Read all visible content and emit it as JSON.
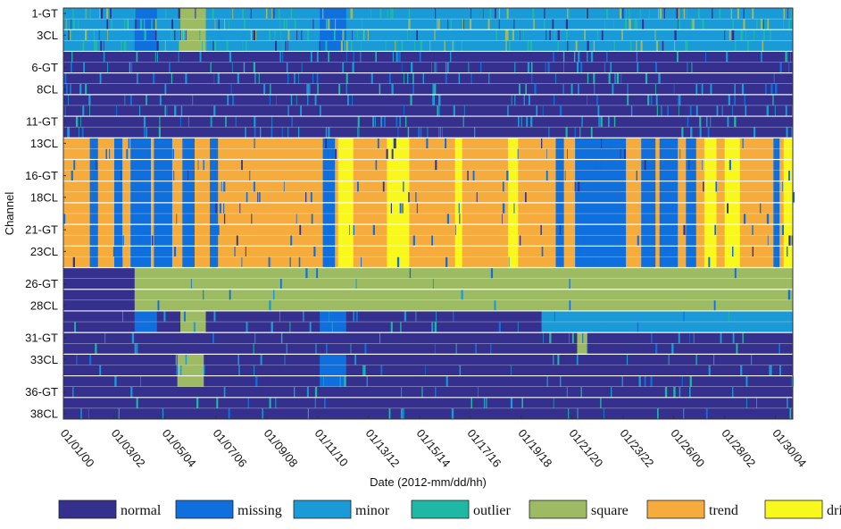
{
  "chart_data": {
    "type": "heatmap",
    "title": "",
    "xlabel": "Date (2012-mm/dd/hh)",
    "ylabel": "Channel",
    "x_tick_labels": [
      "01/01/00",
      "01/03/02",
      "01/05/04",
      "01/07/06",
      "01/09/08",
      "01/11/10",
      "01/13/12",
      "01/15/14",
      "01/17/16",
      "01/19/18",
      "01/21/20",
      "01/23/22",
      "01/26/00",
      "01/28/02",
      "01/30/04"
    ],
    "x_range_hours": [
      0,
      717
    ],
    "x_tick_hours": [
      0,
      50,
      100,
      150,
      200,
      250,
      300,
      350,
      400,
      450,
      500,
      550,
      600,
      650,
      700
    ],
    "channel_count": 38,
    "y_tick_labels": [
      "1-GT",
      "3CL",
      "6-GT",
      "8CL",
      "11-GT",
      "13CL",
      "16-GT",
      "18CL",
      "21-GT",
      "23CL",
      "26-GT",
      "28CL",
      "31-GT",
      "33CL",
      "36-GT",
      "38CL"
    ],
    "y_tick_channels": [
      1,
      3,
      6,
      8,
      11,
      13,
      16,
      18,
      21,
      23,
      26,
      28,
      31,
      33,
      36,
      38
    ],
    "categories": [
      {
        "name": "normal",
        "color": "#35308e"
      },
      {
        "name": "missing",
        "color": "#0f6fdc"
      },
      {
        "name": "minor",
        "color": "#1a9ad6"
      },
      {
        "name": "outlier",
        "color": "#1fb8a4"
      },
      {
        "name": "square",
        "color": "#9dbb62"
      },
      {
        "name": "trend",
        "color": "#f6ac3c"
      },
      {
        "name": "drift",
        "color": "#f8f81c"
      }
    ],
    "channel_blocks": [
      {
        "channels": [
          1,
          2,
          3,
          4
        ],
        "base": "minor",
        "segments": [
          {
            "x0": 70,
            "x1": 92,
            "cat": "missing"
          },
          {
            "x0": 115,
            "x1": 140,
            "cat": "square"
          },
          {
            "x0": 252,
            "x1": 278,
            "cat": "missing"
          }
        ]
      },
      {
        "channels": [
          5,
          6,
          7,
          8,
          9,
          10,
          11,
          12
        ],
        "base": "normal",
        "segments": []
      },
      {
        "channels": [
          13,
          14,
          15,
          16,
          17,
          18,
          19,
          20,
          21,
          22,
          23,
          24
        ],
        "base": "trend",
        "segments": [
          {
            "x0": 26,
            "x1": 34,
            "cat": "missing"
          },
          {
            "x0": 50,
            "x1": 58,
            "cat": "missing"
          },
          {
            "x0": 66,
            "x1": 86,
            "cat": "missing"
          },
          {
            "x0": 89,
            "x1": 107,
            "cat": "missing"
          },
          {
            "x0": 117,
            "x1": 129,
            "cat": "missing"
          },
          {
            "x0": 144,
            "x1": 152,
            "cat": "missing"
          },
          {
            "x0": 255,
            "x1": 267,
            "cat": "missing"
          },
          {
            "x0": 270,
            "x1": 285,
            "cat": "drift"
          },
          {
            "x0": 318,
            "x1": 340,
            "cat": "drift"
          },
          {
            "x0": 385,
            "x1": 392,
            "cat": "drift"
          },
          {
            "x0": 437,
            "x1": 447,
            "cat": "drift"
          },
          {
            "x0": 484,
            "x1": 492,
            "cat": "missing"
          },
          {
            "x0": 503,
            "x1": 553,
            "cat": "missing"
          },
          {
            "x0": 568,
            "x1": 582,
            "cat": "missing"
          },
          {
            "x0": 586,
            "x1": 604,
            "cat": "missing"
          },
          {
            "x0": 612,
            "x1": 622,
            "cat": "missing"
          },
          {
            "x0": 630,
            "x1": 642,
            "cat": "drift"
          },
          {
            "x0": 650,
            "x1": 665,
            "cat": "drift"
          },
          {
            "x0": 698,
            "x1": 704,
            "cat": "missing"
          },
          {
            "x0": 708,
            "x1": 717,
            "cat": "drift"
          }
        ]
      },
      {
        "channels": [
          25,
          26,
          27,
          28
        ],
        "base": "square",
        "segments": [
          {
            "x0": 0,
            "x1": 70,
            "cat": "normal"
          }
        ]
      },
      {
        "channels": [
          29,
          30
        ],
        "base": "normal",
        "segments": [
          {
            "x0": 70,
            "x1": 92,
            "cat": "missing"
          },
          {
            "x0": 115,
            "x1": 140,
            "cat": "square"
          },
          {
            "x0": 252,
            "x1": 278,
            "cat": "missing"
          },
          {
            "x0": 470,
            "x1": 717,
            "cat": "minor"
          }
        ]
      },
      {
        "channels": [
          31,
          32
        ],
        "base": "normal",
        "segments": [
          {
            "x0": 505,
            "x1": 515,
            "cat": "square"
          }
        ]
      },
      {
        "channels": [
          33,
          34,
          35
        ],
        "base": "normal",
        "segments": [
          {
            "x0": 112,
            "x1": 138,
            "cat": "square"
          },
          {
            "x0": 252,
            "x1": 278,
            "cat": "missing"
          }
        ]
      },
      {
        "channels": [
          36,
          37,
          38
        ],
        "base": "normal",
        "segments": []
      }
    ],
    "noise_overlay": "short scattered spikes of minor, outlier and missing in most channels",
    "legend_position": "bottom",
    "grid": false
  }
}
